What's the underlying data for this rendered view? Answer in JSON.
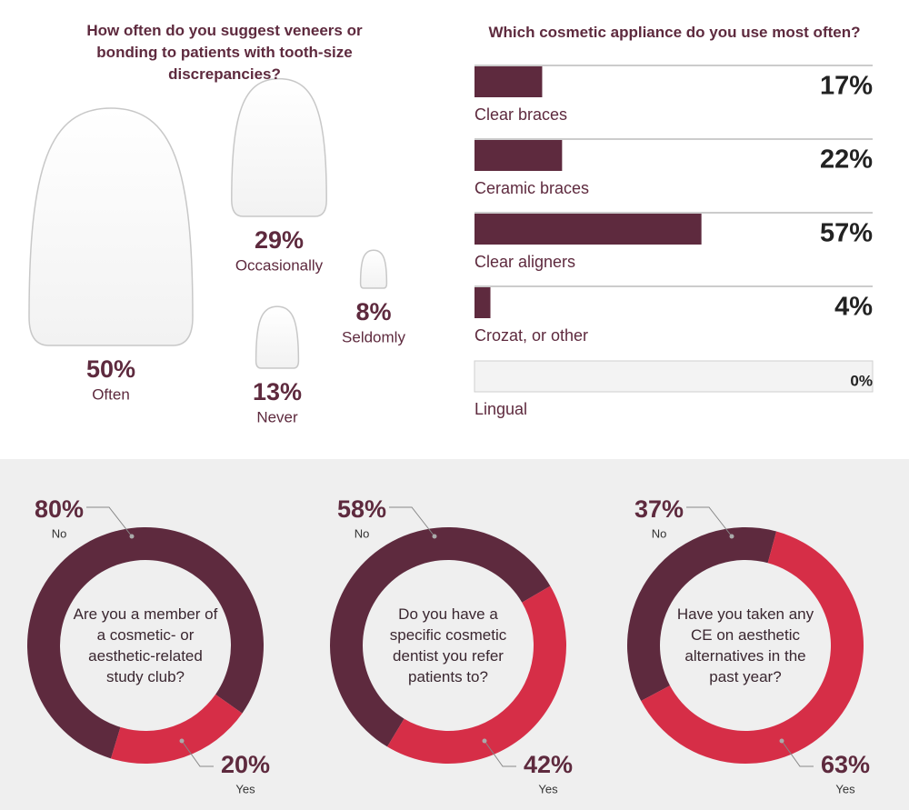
{
  "chart_data": [
    {
      "type": "pictograph",
      "title": "How often do you suggest veneers or bonding to patients with tooth-size discrepancies?",
      "categories": [
        "Often",
        "Occasionally",
        "Never",
        "Seldomly"
      ],
      "values": [
        50,
        29,
        13,
        8
      ],
      "value_labels": [
        "50%",
        "29%",
        "13%",
        "8%"
      ]
    },
    {
      "type": "bar",
      "orientation": "horizontal",
      "title": "Which cosmetic appliance do you use most often?",
      "categories": [
        "Clear braces",
        "Ceramic braces",
        "Clear aligners",
        "Crozat, or other",
        "Lingual"
      ],
      "values": [
        17,
        22,
        57,
        4,
        0
      ],
      "value_labels": [
        "17%",
        "22%",
        "57%",
        "4%",
        "0%"
      ],
      "color": "#5e2a3e",
      "xlim": [
        0,
        100
      ]
    },
    {
      "type": "donut",
      "title": "Are you a member of a cosmetic- or aesthetic-related study club?",
      "categories": [
        "No",
        "Yes"
      ],
      "values": [
        80,
        20
      ],
      "value_labels": [
        "80%",
        "20%"
      ],
      "colors": [
        "#5e2a3e",
        "#d62e47"
      ]
    },
    {
      "type": "donut",
      "title": "Do you have a specific cosmetic dentist you refer patients to?",
      "categories": [
        "No",
        "Yes"
      ],
      "values": [
        58,
        42
      ],
      "value_labels": [
        "58%",
        "42%"
      ],
      "colors": [
        "#5e2a3e",
        "#d62e47"
      ]
    },
    {
      "type": "donut",
      "title": "Have you taken any CE on aesthetic alternatives in the past year?",
      "categories": [
        "No",
        "Yes"
      ],
      "values": [
        37,
        63
      ],
      "value_labels": [
        "37%",
        "63%"
      ],
      "colors": [
        "#5e2a3e",
        "#d62e47"
      ]
    }
  ]
}
